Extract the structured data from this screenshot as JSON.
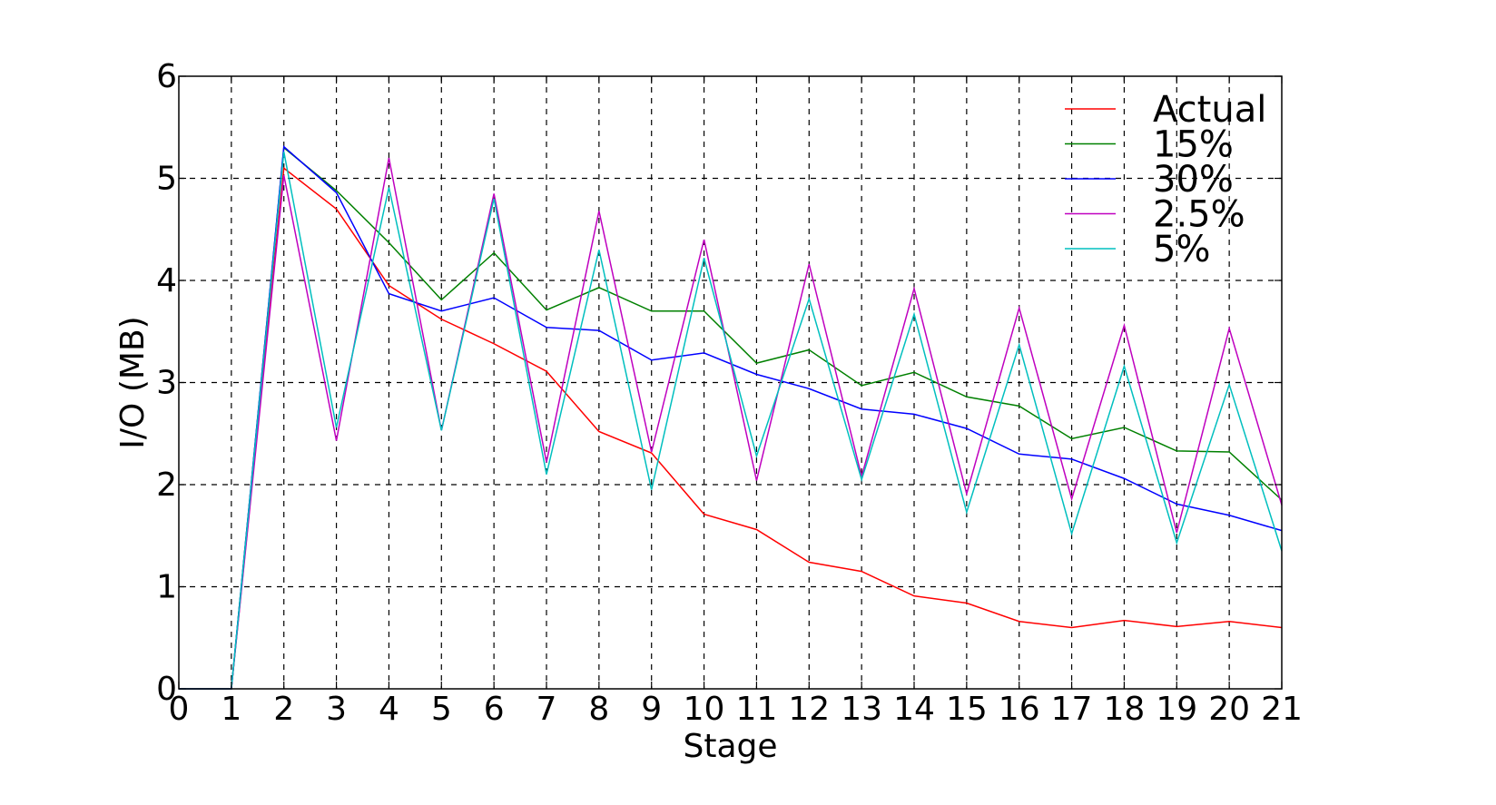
{
  "chart_data": {
    "type": "line",
    "title": "",
    "xlabel": "Stage",
    "ylabel": "I/O (MB)",
    "xlim": [
      0,
      21
    ],
    "ylim": [
      0,
      6
    ],
    "xticks": [
      "0",
      "1",
      "2",
      "3",
      "4",
      "5",
      "6",
      "7",
      "8",
      "9",
      "10",
      "11",
      "12",
      "13",
      "14",
      "15",
      "16",
      "17",
      "18",
      "19",
      "20",
      "21"
    ],
    "yticks": [
      "0",
      "1",
      "2",
      "3",
      "4",
      "5",
      "6"
    ],
    "grid": true,
    "legend_position": "top-right",
    "x": [
      0,
      1,
      2,
      3,
      4,
      5,
      6,
      7,
      8,
      9,
      10,
      11,
      12,
      13,
      14,
      15,
      16,
      17,
      18,
      19,
      20,
      21
    ],
    "series": [
      {
        "name": "Actual",
        "color": "#ff0000",
        "values": [
          0,
          0,
          5.1,
          4.7,
          3.95,
          3.62,
          3.38,
          3.11,
          2.52,
          2.31,
          1.71,
          1.56,
          1.24,
          1.15,
          0.91,
          0.84,
          0.66,
          0.6,
          0.67,
          0.61,
          0.66,
          0.6
        ]
      },
      {
        "name": "15%",
        "color": "#008000",
        "values": [
          0,
          0,
          5.3,
          4.88,
          4.37,
          3.81,
          4.27,
          3.71,
          3.93,
          3.7,
          3.7,
          3.19,
          3.32,
          2.97,
          3.1,
          2.86,
          2.77,
          2.45,
          2.56,
          2.33,
          2.32,
          1.85
        ]
      },
      {
        "name": "30%",
        "color": "#0000ff",
        "values": [
          0,
          0,
          5.31,
          4.86,
          3.87,
          3.7,
          3.83,
          3.54,
          3.51,
          3.22,
          3.29,
          3.08,
          2.94,
          2.74,
          2.69,
          2.55,
          2.3,
          2.25,
          2.06,
          1.81,
          1.7,
          1.55
        ]
      },
      {
        "name": "2.5%",
        "color": "#bf00bf",
        "values": [
          0,
          0,
          5.03,
          2.43,
          5.2,
          2.53,
          4.85,
          2.22,
          4.68,
          2.32,
          4.4,
          2.04,
          4.16,
          2.08,
          3.92,
          1.91,
          3.73,
          1.86,
          3.56,
          1.53,
          3.53,
          1.8
        ]
      },
      {
        "name": "5%",
        "color": "#00bfbf",
        "values": [
          0,
          0,
          5.26,
          2.56,
          4.91,
          2.53,
          4.8,
          2.1,
          4.3,
          1.95,
          4.22,
          2.28,
          3.82,
          2.05,
          3.67,
          1.73,
          3.37,
          1.52,
          3.16,
          1.43,
          2.98,
          1.35
        ]
      }
    ]
  }
}
